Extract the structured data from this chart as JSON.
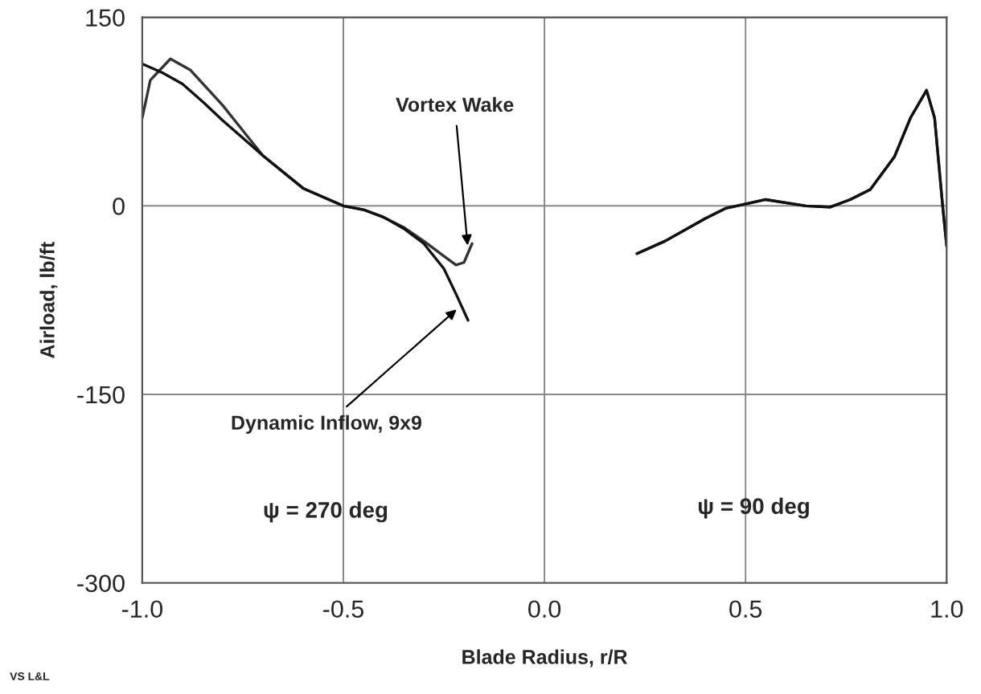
{
  "chart_data": {
    "type": "line",
    "xlabel": "Blade Radius, r/R",
    "ylabel": "Airload, lb/ft",
    "xlim": [
      -1.0,
      1.0
    ],
    "xticks": [
      {
        "value": -1.0,
        "label": "-1.0"
      },
      {
        "value": -0.5,
        "label": "-0.5"
      },
      {
        "value": 0.0,
        "label": "0.0"
      },
      {
        "value": 0.5,
        "label": "0.5"
      },
      {
        "value": 1.0,
        "label": "1.0"
      }
    ],
    "ylim": [
      -300,
      150
    ],
    "yticks": [
      -300,
      -150,
      0,
      150
    ],
    "grid": true,
    "legend": false,
    "marker": "none",
    "line_style": "solid",
    "series": [
      {
        "color": "#333333",
        "x": [
          -1.0,
          -0.98,
          -0.93,
          -0.88,
          -0.8,
          -0.75,
          -0.7,
          -0.6,
          -0.5,
          -0.45,
          -0.4,
          -0.35,
          -0.3,
          -0.25,
          -0.22,
          -0.2,
          -0.18,
          0.2,
          0.23,
          0.3,
          0.4,
          0.45,
          0.55,
          0.65,
          0.71,
          0.76,
          0.81,
          0.87,
          0.91,
          0.95,
          0.97,
          0.99,
          1.0
        ],
        "values": [
          70,
          100,
          117,
          108,
          80,
          60,
          40,
          14,
          0,
          -3,
          -9,
          -17,
          -28,
          -40,
          -47,
          -45,
          -30,
          null,
          -38,
          -28,
          -10,
          -2,
          5,
          0,
          -1,
          5,
          13,
          39,
          70,
          92,
          70,
          0,
          -32
        ]
      },
      {
        "color": "#111111",
        "x": [
          -1.0,
          -0.95,
          -0.9,
          -0.85,
          -0.8,
          -0.75,
          -0.7,
          -0.6,
          -0.5,
          -0.45,
          -0.4,
          -0.35,
          -0.3,
          -0.25,
          -0.22,
          -0.19,
          0.2,
          0.23,
          0.3,
          0.4,
          0.45,
          0.55,
          0.65,
          0.71,
          0.76,
          0.81,
          0.87,
          0.91,
          0.95,
          0.97,
          0.99,
          1.0
        ],
        "values": [
          113,
          106,
          97,
          83,
          68,
          54,
          40,
          14,
          0,
          -3,
          -9,
          -18,
          -30,
          -50,
          -70,
          -91,
          null,
          -38,
          -28,
          -10,
          -2,
          5,
          0,
          -1,
          5,
          13,
          39,
          70,
          92,
          70,
          0,
          -32
        ]
      }
    ],
    "annotations": [
      {
        "text": "Vortex Wake",
        "x": -0.19,
        "y": -35
      },
      {
        "text": "Dynamic Inflow, 9x9",
        "x": -0.21,
        "y": -80
      },
      "ψ = 270 deg",
      "ψ = 90 deg",
      "VS L&L"
    ]
  }
}
